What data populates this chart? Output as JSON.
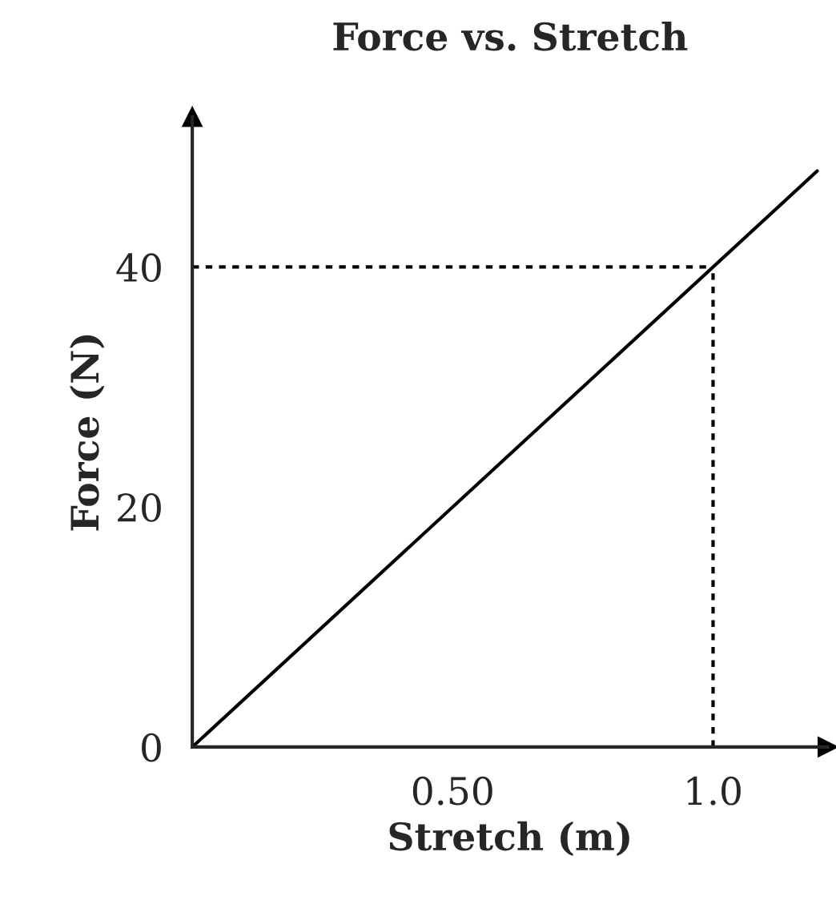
{
  "chart_data": {
    "type": "line",
    "title": "Force vs. Stretch",
    "xlabel": "Stretch (m)",
    "ylabel": "Force (N)",
    "xlim": [
      0,
      1.22
    ],
    "ylim": [
      0,
      52.5
    ],
    "xticks": [
      {
        "value": 0.5,
        "label": "0.50"
      },
      {
        "value": 1.0,
        "label": "1.0"
      }
    ],
    "yticks": [
      0,
      20,
      40
    ],
    "grid": false,
    "legend": false,
    "series": [
      {
        "color": "#000000",
        "x": [
          0,
          1.2
        ],
        "values": [
          0,
          48
        ],
        "line_style": "solid"
      },
      {
        "color": "#000000",
        "x": [
          0,
          1.0
        ],
        "values": [
          40,
          40
        ],
        "line_style": "dotted"
      },
      {
        "color": "#000000",
        "x": [
          1.0,
          1.0
        ],
        "values": [
          0,
          40
        ],
        "line_style": "dotted"
      }
    ]
  }
}
